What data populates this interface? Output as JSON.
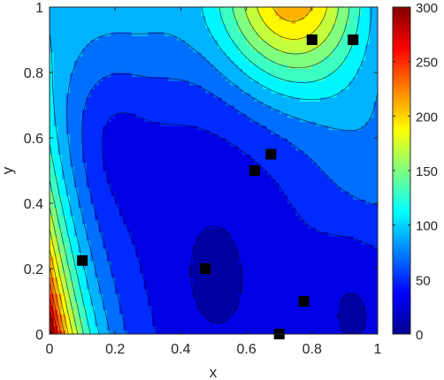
{
  "chart_data": {
    "type": "contour",
    "title": "",
    "xlabel": "x",
    "ylabel": "y",
    "xlim": [
      0,
      1
    ],
    "ylim": [
      0,
      1
    ],
    "xticks": [
      "0",
      "0.2",
      "0.4",
      "0.6",
      "0.8",
      "1"
    ],
    "yticks": [
      "0",
      "0.2",
      "0.4",
      "0.6",
      "0.8",
      "1"
    ],
    "colorbar": {
      "colormap": "jet",
      "range": [
        0,
        300
      ],
      "ticks": [
        "0",
        "50",
        "100",
        "150",
        "200",
        "250",
        "300"
      ]
    },
    "grid": false,
    "series": [
      {
        "marker": "square",
        "color": "#000000",
        "points": [
          {
            "x": 0.1,
            "y": 0.225
          },
          {
            "x": 0.475,
            "y": 0.2
          },
          {
            "x": 0.625,
            "y": 0.5
          },
          {
            "x": 0.675,
            "y": 0.55
          },
          {
            "x": 0.7,
            "y": 0.0
          },
          {
            "x": 0.775,
            "y": 0.1
          },
          {
            "x": 0.8,
            "y": 0.9
          },
          {
            "x": 0.925,
            "y": 0.9
          }
        ]
      }
    ]
  }
}
